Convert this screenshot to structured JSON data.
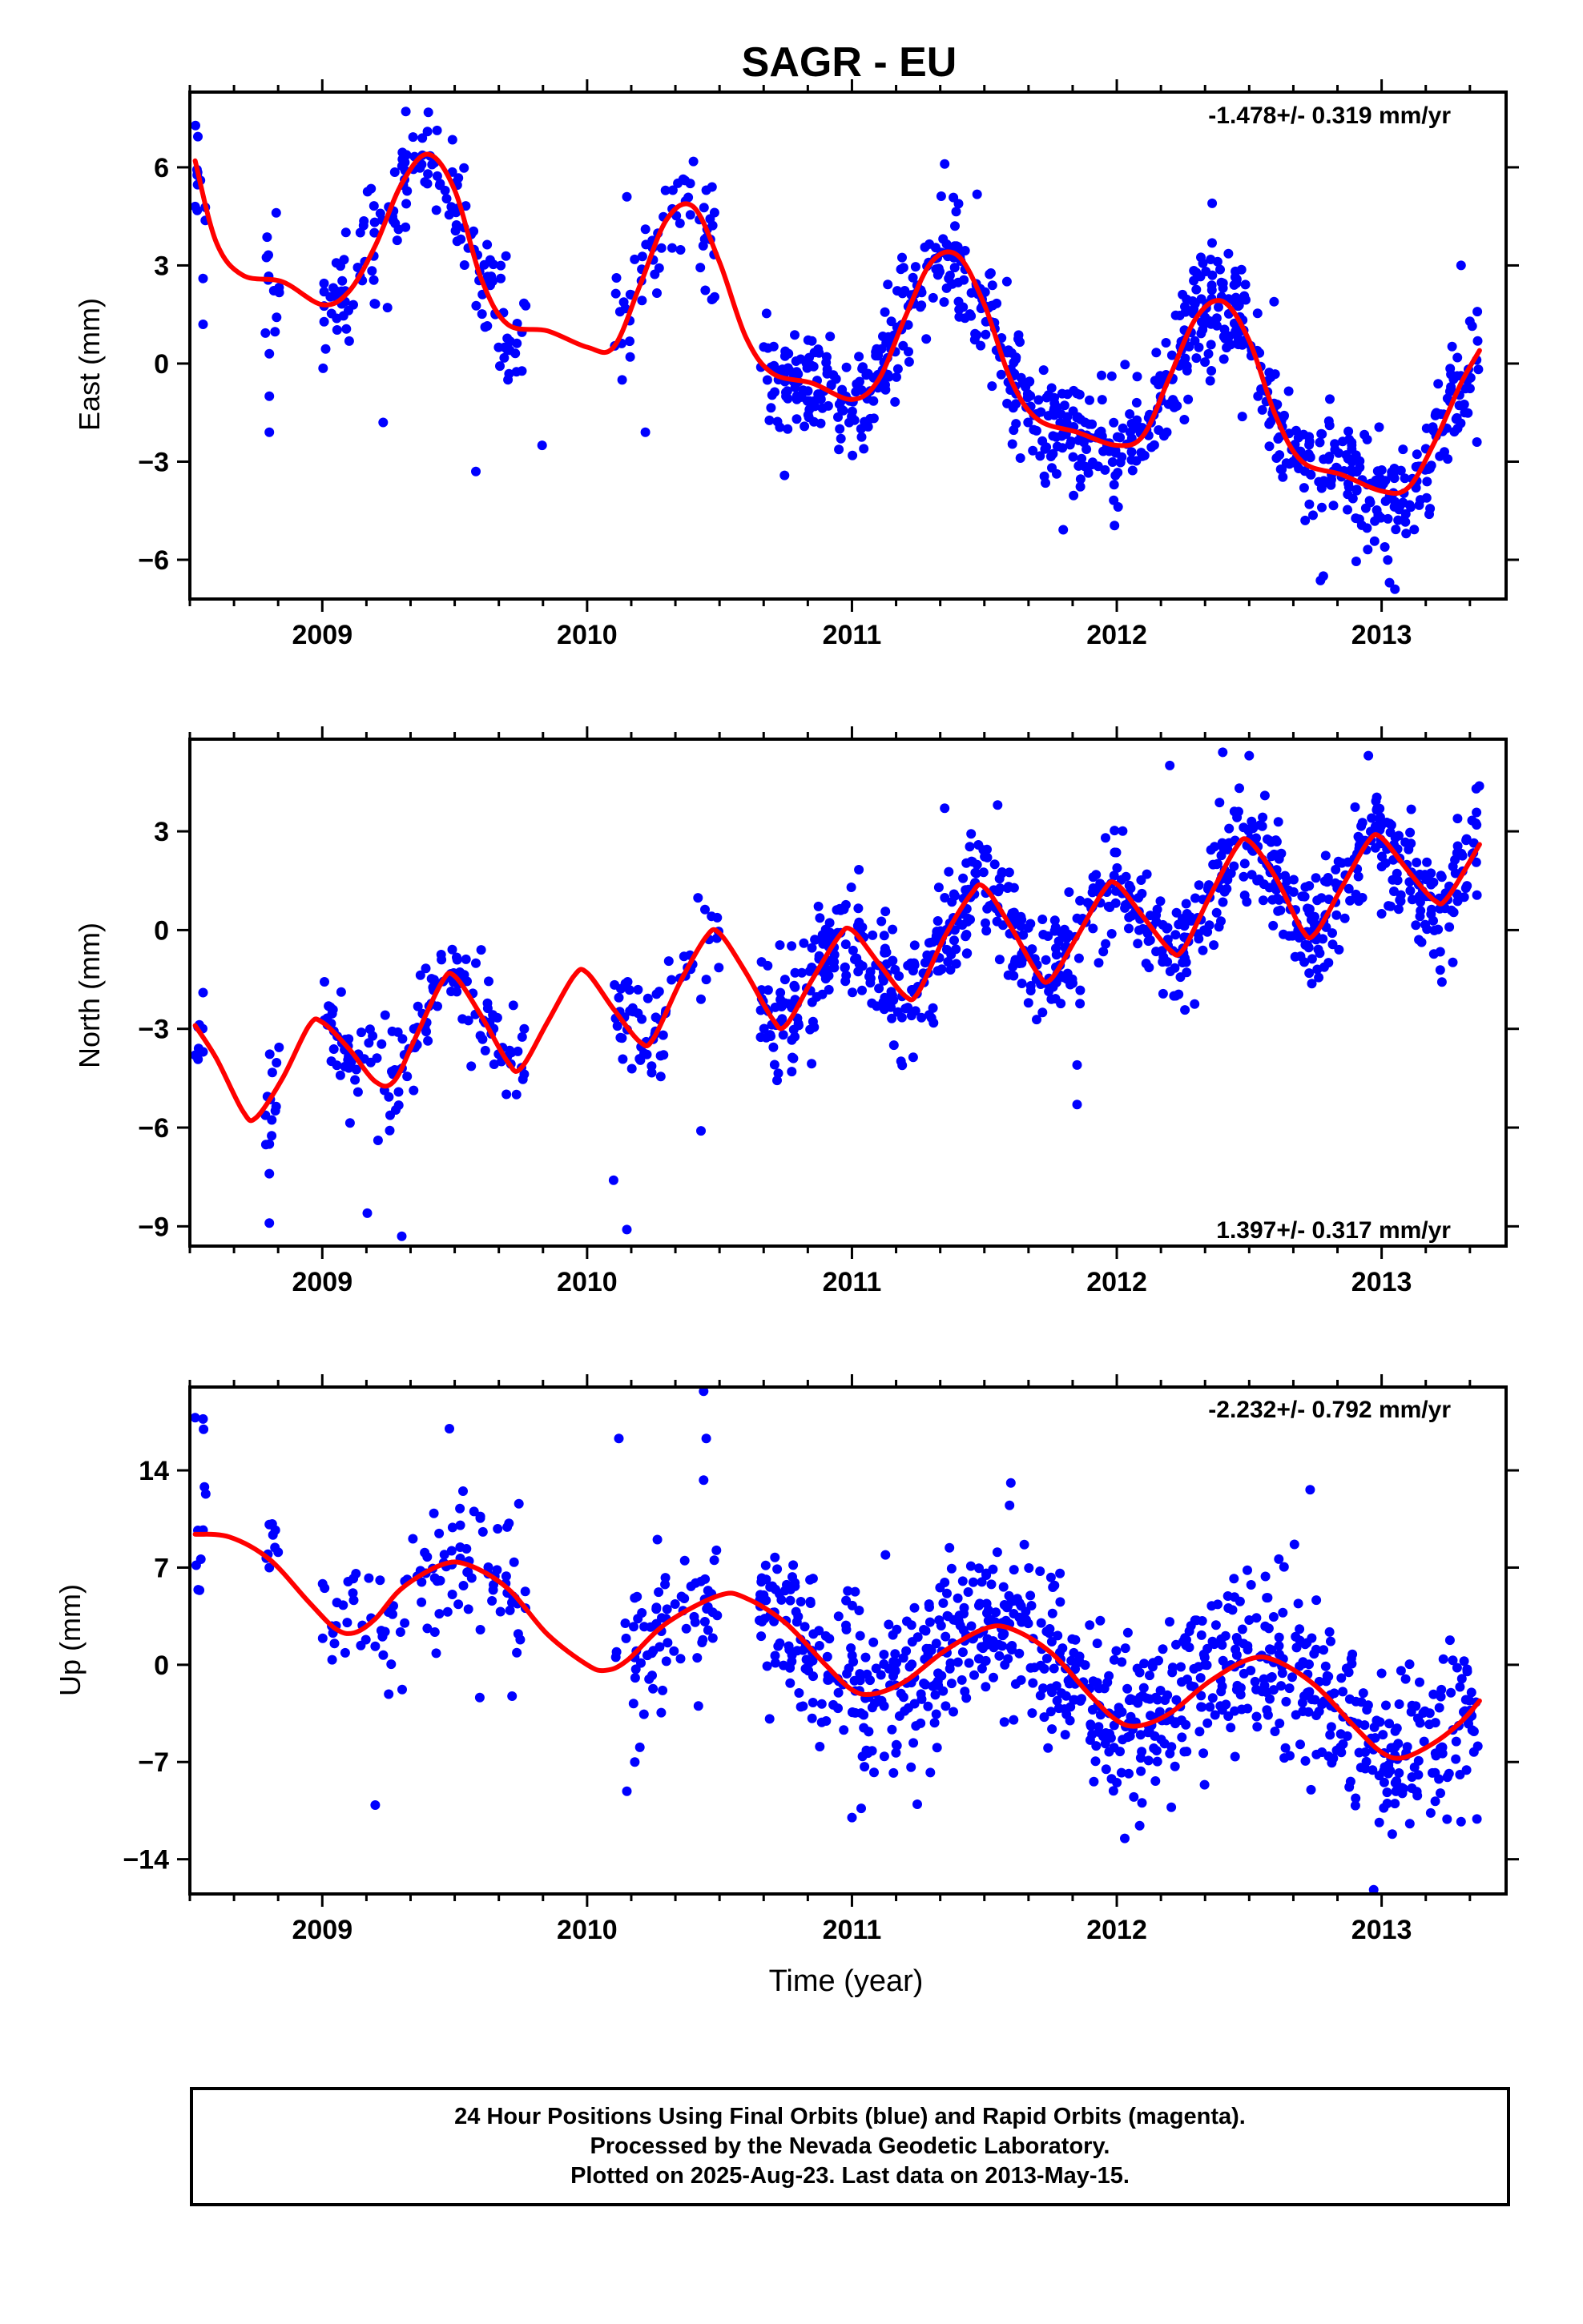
{
  "title": "SAGR - EU",
  "xlabel": "Time (year)",
  "x_ticks": [
    "2009",
    "2010",
    "2011",
    "2012",
    "2013"
  ],
  "caption": [
    "24 Hour Positions Using Final Orbits (blue) and Rapid Orbits (magenta).",
    "Processed by the Nevada Geodetic Laboratory.",
    "Plotted on 2025-Aug-23. Last data on 2013-May-15."
  ],
  "colors": {
    "data_points": "#0000ff",
    "model_curve": "#ff0000",
    "frame": "#000000"
  },
  "chart_data": [
    {
      "type": "scatter",
      "component": "East",
      "ylabel": "East (mm)",
      "rate_label": "-1.478+/- 0.319 mm/yr",
      "rate_label_position": "top-right",
      "xlim": [
        2008.5,
        2013.47
      ],
      "ylim": [
        -7.2,
        8.3
      ],
      "y_ticks": [
        6,
        3,
        0,
        -3,
        -6
      ],
      "y_tick_labels": [
        "6",
        "3",
        "0",
        "−3",
        "−6"
      ],
      "data_span": [
        2008.52,
        2013.37
      ],
      "data_gaps": [
        [
          2008.56,
          2008.78
        ],
        [
          2008.84,
          2009.0
        ],
        [
          2009.77,
          2010.1
        ],
        [
          2010.5,
          2010.65
        ]
      ],
      "scatter_sd": 0.9,
      "series": [
        {
          "role": "data",
          "color": "#0000ff",
          "marker": "dot",
          "points": [
            [
              2008.52,
              4.8
            ],
            [
              2008.54,
              5.6
            ],
            [
              2008.55,
              2.6
            ],
            [
              2008.55,
              1.2
            ],
            [
              2008.8,
              0.3
            ],
            [
              2008.8,
              -1.0
            ],
            [
              2008.8,
              -2.1
            ],
            [
              2009.23,
              -1.8
            ],
            [
              2009.58,
              -3.3
            ],
            [
              2009.83,
              -2.5
            ],
            [
              2010.22,
              -2.1
            ],
            [
              2010.15,
              5.1
            ],
            [
              2010.45,
              5.3
            ],
            [
              2011.35,
              6.1
            ],
            [
              2012.36,
              4.9
            ],
            [
              2013.05,
              -6.9
            ],
            [
              2013.03,
              -6.7
            ],
            [
              2012.78,
              -6.5
            ],
            [
              2013.3,
              3.0
            ],
            [
              2013.36,
              -2.4
            ]
          ]
        },
        {
          "role": "model",
          "color": "#ff0000",
          "points": [
            [
              2008.52,
              6.2
            ],
            [
              2008.6,
              3.7
            ],
            [
              2008.7,
              2.7
            ],
            [
              2008.85,
              2.5
            ],
            [
              2009.0,
              1.8
            ],
            [
              2009.1,
              2.2
            ],
            [
              2009.2,
              3.6
            ],
            [
              2009.3,
              5.5
            ],
            [
              2009.4,
              6.4
            ],
            [
              2009.5,
              5.3
            ],
            [
              2009.6,
              2.6
            ],
            [
              2009.7,
              1.2
            ],
            [
              2009.85,
              1.0
            ],
            [
              2010.0,
              0.5
            ],
            [
              2010.1,
              0.5
            ],
            [
              2010.2,
              2.4
            ],
            [
              2010.3,
              4.4
            ],
            [
              2010.4,
              4.8
            ],
            [
              2010.5,
              3.1
            ],
            [
              2010.6,
              0.8
            ],
            [
              2010.7,
              -0.3
            ],
            [
              2010.85,
              -0.6
            ],
            [
              2011.0,
              -1.1
            ],
            [
              2011.1,
              -0.5
            ],
            [
              2011.2,
              1.4
            ],
            [
              2011.3,
              3.1
            ],
            [
              2011.4,
              3.3
            ],
            [
              2011.5,
              1.8
            ],
            [
              2011.6,
              -0.5
            ],
            [
              2011.7,
              -1.7
            ],
            [
              2011.85,
              -2.1
            ],
            [
              2012.0,
              -2.5
            ],
            [
              2012.1,
              -2.2
            ],
            [
              2012.2,
              -0.4
            ],
            [
              2012.3,
              1.4
            ],
            [
              2012.4,
              1.9
            ],
            [
              2012.5,
              0.7
            ],
            [
              2012.6,
              -1.6
            ],
            [
              2012.7,
              -3.0
            ],
            [
              2012.85,
              -3.4
            ],
            [
              2013.0,
              -3.9
            ],
            [
              2013.1,
              -3.8
            ],
            [
              2013.2,
              -2.4
            ],
            [
              2013.3,
              -0.6
            ],
            [
              2013.37,
              0.4
            ]
          ]
        }
      ]
    },
    {
      "type": "scatter",
      "component": "North",
      "ylabel": "North (mm)",
      "rate_label": "1.397+/- 0.317 mm/yr",
      "rate_label_position": "bottom-right",
      "xlim": [
        2008.5,
        2013.47
      ],
      "ylim": [
        -9.6,
        5.8
      ],
      "y_ticks": [
        3,
        0,
        -3,
        -6,
        -9
      ],
      "y_tick_labels": [
        "3",
        "0",
        "−3",
        "−6",
        "−9"
      ],
      "data_span": [
        2008.52,
        2013.37
      ],
      "data_gaps": [
        [
          2008.56,
          2008.78
        ],
        [
          2008.84,
          2009.0
        ],
        [
          2009.77,
          2010.1
        ],
        [
          2010.5,
          2010.65
        ]
      ],
      "scatter_sd": 0.85,
      "series": [
        {
          "role": "data",
          "color": "#0000ff",
          "marker": "dot",
          "points": [
            [
              2008.52,
              -3.8
            ],
            [
              2008.55,
              -1.9
            ],
            [
              2008.55,
              -3.7
            ],
            [
              2008.8,
              -6.5
            ],
            [
              2008.8,
              -7.4
            ],
            [
              2008.8,
              -8.9
            ],
            [
              2009.17,
              -8.6
            ],
            [
              2009.3,
              -9.3
            ],
            [
              2009.45,
              -0.9
            ],
            [
              2009.6,
              -0.6
            ],
            [
              2010.15,
              -9.1
            ],
            [
              2010.1,
              -7.6
            ],
            [
              2010.43,
              -2.1
            ],
            [
              2010.43,
              -6.1
            ],
            [
              2010.45,
              -1.5
            ],
            [
              2011.35,
              3.7
            ],
            [
              2011.55,
              3.8
            ],
            [
              2011.85,
              -5.3
            ],
            [
              2011.85,
              -4.1
            ],
            [
              2012.4,
              5.4
            ],
            [
              2012.5,
              5.3
            ],
            [
              2012.95,
              5.3
            ],
            [
              2012.2,
              5.0
            ]
          ]
        },
        {
          "role": "model",
          "color": "#ff0000",
          "points": [
            [
              2008.52,
              -2.9
            ],
            [
              2008.6,
              -3.9
            ],
            [
              2008.7,
              -5.5
            ],
            [
              2008.75,
              -5.7
            ],
            [
              2008.85,
              -4.5
            ],
            [
              2008.95,
              -2.9
            ],
            [
              2009.0,
              -2.8
            ],
            [
              2009.1,
              -3.6
            ],
            [
              2009.2,
              -4.6
            ],
            [
              2009.27,
              -4.6
            ],
            [
              2009.35,
              -3.3
            ],
            [
              2009.45,
              -1.6
            ],
            [
              2009.5,
              -1.4
            ],
            [
              2009.6,
              -2.6
            ],
            [
              2009.7,
              -4.0
            ],
            [
              2009.75,
              -4.2
            ],
            [
              2009.85,
              -2.8
            ],
            [
              2009.95,
              -1.4
            ],
            [
              2010.0,
              -1.3
            ],
            [
              2010.1,
              -2.4
            ],
            [
              2010.2,
              -3.4
            ],
            [
              2010.25,
              -3.3
            ],
            [
              2010.35,
              -1.6
            ],
            [
              2010.45,
              -0.2
            ],
            [
              2010.5,
              -0.1
            ],
            [
              2010.6,
              -1.3
            ],
            [
              2010.7,
              -2.7
            ],
            [
              2010.75,
              -2.9
            ],
            [
              2010.85,
              -1.5
            ],
            [
              2010.95,
              -0.2
            ],
            [
              2011.0,
              0.0
            ],
            [
              2011.1,
              -1.0
            ],
            [
              2011.2,
              -2.0
            ],
            [
              2011.25,
              -1.9
            ],
            [
              2011.35,
              -0.2
            ],
            [
              2011.45,
              1.1
            ],
            [
              2011.5,
              1.3
            ],
            [
              2011.6,
              0.1
            ],
            [
              2011.7,
              -1.3
            ],
            [
              2011.75,
              -1.5
            ],
            [
              2011.85,
              -0.2
            ],
            [
              2011.95,
              1.2
            ],
            [
              2012.0,
              1.4
            ],
            [
              2012.1,
              0.4
            ],
            [
              2012.2,
              -0.6
            ],
            [
              2012.25,
              -0.6
            ],
            [
              2012.35,
              1.0
            ],
            [
              2012.45,
              2.5
            ],
            [
              2012.5,
              2.7
            ],
            [
              2012.6,
              1.6
            ],
            [
              2012.7,
              0.0
            ],
            [
              2012.75,
              -0.1
            ],
            [
              2012.85,
              1.3
            ],
            [
              2012.95,
              2.7
            ],
            [
              2013.0,
              2.8
            ],
            [
              2013.1,
              1.8
            ],
            [
              2013.2,
              0.9
            ],
            [
              2013.25,
              1.0
            ],
            [
              2013.37,
              2.6
            ]
          ]
        }
      ]
    },
    {
      "type": "scatter",
      "component": "Up",
      "ylabel": "Up (mm)",
      "rate_label": "-2.232+/- 0.792 mm/yr",
      "rate_label_position": "top-right",
      "xlim": [
        2008.5,
        2013.47
      ],
      "ylim": [
        -16.5,
        20.0
      ],
      "y_ticks": [
        14,
        7,
        0,
        -7,
        -14
      ],
      "y_tick_labels": [
        "14",
        "7",
        "0",
        "−7",
        "−14"
      ],
      "data_span": [
        2008.52,
        2013.37
      ],
      "data_gaps": [
        [
          2008.56,
          2008.78
        ],
        [
          2008.84,
          2009.0
        ],
        [
          2009.77,
          2010.1
        ],
        [
          2010.5,
          2010.65
        ]
      ],
      "scatter_sd": 3.0,
      "series": [
        {
          "role": "data",
          "color": "#0000ff",
          "marker": "dot",
          "points": [
            [
              2008.52,
              17.8
            ],
            [
              2008.55,
              17.7
            ],
            [
              2008.56,
              12.3
            ],
            [
              2008.55,
              9.7
            ],
            [
              2008.8,
              10.1
            ],
            [
              2008.8,
              7.0
            ],
            [
              2009.2,
              -10.1
            ],
            [
              2009.48,
              17.0
            ],
            [
              2010.12,
              16.3
            ],
            [
              2010.18,
              -7.0
            ],
            [
              2010.15,
              -9.1
            ],
            [
              2010.44,
              19.7
            ],
            [
              2010.45,
              16.3
            ],
            [
              2010.44,
              13.3
            ],
            [
              2010.43,
              6.0
            ],
            [
              2011.0,
              -11.0
            ],
            [
              2011.6,
              13.1
            ],
            [
              2012.03,
              -12.5
            ],
            [
              2012.73,
              12.6
            ],
            [
              2012.97,
              -16.2
            ],
            [
              2013.3,
              -11.3
            ],
            [
              2013.36,
              -11.1
            ]
          ]
        },
        {
          "role": "model",
          "color": "#ff0000",
          "points": [
            [
              2008.52,
              9.4
            ],
            [
              2008.65,
              9.2
            ],
            [
              2008.8,
              7.6
            ],
            [
              2008.95,
              4.5
            ],
            [
              2009.05,
              2.6
            ],
            [
              2009.12,
              2.3
            ],
            [
              2009.2,
              3.3
            ],
            [
              2009.3,
              5.5
            ],
            [
              2009.45,
              7.2
            ],
            [
              2009.55,
              7.2
            ],
            [
              2009.7,
              5.5
            ],
            [
              2009.85,
              2.2
            ],
            [
              2010.0,
              0.0
            ],
            [
              2010.07,
              -0.4
            ],
            [
              2010.15,
              0.3
            ],
            [
              2010.3,
              3.0
            ],
            [
              2010.5,
              5.0
            ],
            [
              2010.6,
              4.8
            ],
            [
              2010.75,
              3.0
            ],
            [
              2010.9,
              0.0
            ],
            [
              2011.0,
              -1.8
            ],
            [
              2011.08,
              -2.1
            ],
            [
              2011.2,
              -1.2
            ],
            [
              2011.35,
              1.0
            ],
            [
              2011.5,
              2.6
            ],
            [
              2011.6,
              2.6
            ],
            [
              2011.75,
              0.9
            ],
            [
              2011.9,
              -2.2
            ],
            [
              2012.0,
              -4.0
            ],
            [
              2012.08,
              -4.4
            ],
            [
              2012.2,
              -3.5
            ],
            [
              2012.35,
              -1.2
            ],
            [
              2012.5,
              0.4
            ],
            [
              2012.6,
              0.3
            ],
            [
              2012.75,
              -1.5
            ],
            [
              2012.9,
              -4.5
            ],
            [
              2013.0,
              -6.3
            ],
            [
              2013.08,
              -6.7
            ],
            [
              2013.2,
              -5.6
            ],
            [
              2013.3,
              -4.1
            ],
            [
              2013.37,
              -2.6
            ]
          ]
        }
      ]
    }
  ]
}
